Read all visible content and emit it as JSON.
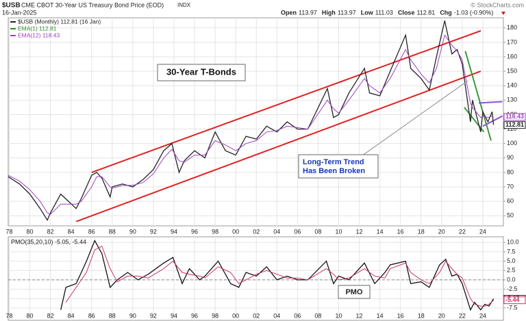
{
  "chart_data": [
    {
      "type": "line",
      "symbol": "$USB",
      "title": "CME CBOT 30-Year US Treasury Bond Price (EOD)",
      "exchange": "INDX",
      "date": "16-Jan-2025",
      "credit": "© StockCharts.com",
      "ohlc": [
        [
          "Open",
          "113.97"
        ],
        [
          "High",
          "113.97"
        ],
        [
          "Low",
          "111.03"
        ],
        [
          "Close",
          "112.81"
        ],
        [
          "Chg",
          "-1.03 (-0.90%)"
        ]
      ],
      "annotations": [
        "30-Year T-Bonds",
        "Long-Term Trend",
        "Has Been Broken"
      ],
      "extra_legend": [
        {
          "name": "EMA(1) 112.81",
          "color": "#2e8b2e"
        }
      ],
      "x": [
        1977.9,
        1979,
        1980,
        1981,
        1981.7,
        1982,
        1983,
        1984.5,
        1985,
        1986,
        1986.5,
        1987,
        1987.8,
        1988,
        1989,
        1990,
        1991,
        1992,
        1993,
        1993.8,
        1994.5,
        1995,
        1996,
        1997,
        1998,
        1999,
        2000,
        2001,
        2002,
        2003,
        2004,
        2005,
        2006,
        2007,
        2008.9,
        2009.5,
        2010,
        2011,
        2012.5,
        2013,
        2014,
        2015,
        2016.5,
        2017,
        2018,
        2018.8,
        2019.5,
        2020.3,
        2021,
        2021.5,
        2022,
        2022.8,
        2023,
        2023.8,
        2024,
        2024.5,
        2024.9,
        2025.04
      ],
      "series": [
        {
          "name": "$USB (Monthly) 112.81 (16 Jan)",
          "color": "#222222",
          "last_label": "112.81",
          "values": [
            77,
            72,
            65,
            55,
            47,
            52,
            65,
            55,
            62,
            78,
            80,
            76,
            63,
            70,
            72,
            70,
            75,
            82,
            95,
            100,
            80,
            88,
            95,
            90,
            108,
            95,
            92,
            105,
            103,
            112,
            108,
            115,
            110,
            110,
            138,
            118,
            120,
            135,
            152,
            135,
            133,
            150,
            175,
            152,
            145,
            137,
            160,
            185,
            162,
            165,
            155,
            115,
            130,
            108,
            122,
            115,
            122,
            112.81
          ]
        },
        {
          "name": "EMA(12) 118.43",
          "color": "#a040c0",
          "last_label": "118.43",
          "values": [
            78,
            74,
            68,
            60,
            52,
            51,
            58,
            58,
            60,
            70,
            77,
            77,
            70,
            69,
            71,
            71,
            73,
            79,
            90,
            96,
            88,
            87,
            92,
            92,
            102,
            99,
            95,
            100,
            102,
            108,
            109,
            112,
            111,
            110,
            130,
            124,
            121,
            130,
            145,
            140,
            135,
            145,
            165,
            158,
            148,
            142,
            152,
            175,
            168,
            164,
            158,
            128,
            125,
            118,
            119,
            118,
            119,
            118.43
          ]
        }
      ],
      "trendlines": [
        {
          "color": "#e02020",
          "points": [
            [
              1986,
              80
            ],
            [
              2023.8,
              178
            ]
          ]
        },
        {
          "color": "#e02020",
          "points": [
            [
              1984.5,
              46
            ],
            [
              2023.8,
              150
            ]
          ]
        },
        {
          "color": "#3a9a3a",
          "points": [
            [
              2022.3,
              164
            ],
            [
              2024.8,
              102
            ]
          ]
        },
        {
          "color": "#3a9a3a",
          "points": [
            [
              2022.2,
              125
            ],
            [
              2024.1,
              108
            ]
          ]
        },
        {
          "color": "#9050d0",
          "points": [
            [
              2024,
              112
            ],
            [
              2025.9,
              119
            ]
          ]
        },
        {
          "color": "#9050d0",
          "points": [
            [
              2023.6,
              128
            ],
            [
              2025.9,
              129
            ]
          ]
        }
      ],
      "xlim": [
        1977.9,
        2026
      ],
      "ylim": [
        43,
        187
      ],
      "xticks": [
        {
          "value": 1978,
          "label": "78"
        },
        {
          "value": 1980,
          "label": "80"
        },
        {
          "value": 1982,
          "label": "82"
        },
        {
          "value": 1984,
          "label": "84"
        },
        {
          "value": 1986,
          "label": "86"
        },
        {
          "value": 1988,
          "label": "88"
        },
        {
          "value": 1990,
          "label": "90"
        },
        {
          "value": 1992,
          "label": "92"
        },
        {
          "value": 1994,
          "label": "94"
        },
        {
          "value": 1996,
          "label": "96"
        },
        {
          "value": 1998,
          "label": "98"
        },
        {
          "value": 2000,
          "label": "00"
        },
        {
          "value": 2002,
          "label": "02"
        },
        {
          "value": 2004,
          "label": "04"
        },
        {
          "value": 2006,
          "label": "06"
        },
        {
          "value": 2008,
          "label": "08"
        },
        {
          "value": 2010,
          "label": "10"
        },
        {
          "value": 2012,
          "label": "12"
        },
        {
          "value": 2014,
          "label": "14"
        },
        {
          "value": 2016,
          "label": "16"
        },
        {
          "value": 2018,
          "label": "18"
        },
        {
          "value": 2020,
          "label": "20"
        },
        {
          "value": 2022,
          "label": "22"
        },
        {
          "value": 2024,
          "label": "24"
        }
      ],
      "yticks": [
        50,
        60,
        70,
        80,
        90,
        100,
        110,
        120,
        130,
        140,
        150,
        160,
        170,
        180
      ],
      "grid": true
    },
    {
      "type": "line",
      "title": "PMO(35,20,10) -5.05, -5.44",
      "annotation": "PMO",
      "x": [
        1983,
        1983.5,
        1984.5,
        1985.5,
        1986.3,
        1987,
        1987.8,
        1988.5,
        1989.5,
        1990.5,
        1991.5,
        1993,
        1993.9,
        1994.8,
        1995.5,
        1996.5,
        1997,
        1998.3,
        1999.5,
        2000.3,
        2001,
        2002,
        2003,
        2004,
        2005,
        2006,
        2007,
        2008.8,
        2009.5,
        2010,
        2011,
        2012.5,
        2013.5,
        2014.5,
        2015,
        2016.5,
        2017,
        2018,
        2018.8,
        2019.8,
        2020.4,
        2021,
        2021.5,
        2022,
        2022.8,
        2023.2,
        2023.8,
        2024.2,
        2024.6,
        2025.04
      ],
      "series": [
        {
          "color": "#111111",
          "last_label": "-5.05",
          "values": [
            -8,
            -2,
            -1,
            5,
            10.5,
            7,
            -2,
            0,
            2,
            0,
            1.5,
            4.5,
            6,
            -1,
            3,
            0,
            1,
            5,
            -1,
            -2,
            2,
            1,
            3.5,
            0,
            1,
            0,
            0,
            5,
            -1,
            1,
            0,
            4.5,
            -1,
            2,
            4,
            5,
            -1,
            -0.5,
            -2,
            4,
            5.5,
            1,
            1.5,
            -1,
            -8,
            -6,
            -8,
            -6.5,
            -7,
            -5.05
          ]
        },
        {
          "color": "#d03060",
          "last_label": "-5.44",
          "values": [
            null,
            -6,
            -2,
            2,
            8,
            9,
            3,
            -0.5,
            1,
            1,
            0.5,
            3,
            5,
            2,
            1.5,
            1,
            0.5,
            3.5,
            2,
            -1,
            0,
            1.5,
            2.5,
            1.5,
            0.5,
            0.5,
            0,
            3,
            1.5,
            0,
            0.5,
            3,
            1,
            0.5,
            3,
            4.5,
            2,
            0,
            -1,
            2,
            5,
            3,
            1.5,
            0.5,
            -5,
            -6.5,
            -7,
            -7,
            -6.5,
            -5.44
          ]
        }
      ],
      "ylim": [
        -10.8,
        11.5
      ],
      "yticks": [
        {
          "value": 10,
          "label": "10.0"
        },
        {
          "value": 7.5,
          "label": "7.5"
        },
        {
          "value": 5,
          "label": "5.0"
        },
        {
          "value": 2.5,
          "label": "2.5"
        },
        {
          "value": 0,
          "label": "0.0"
        },
        {
          "value": -2.5,
          "label": "-2.5"
        },
        {
          "value": -5,
          "label": "-5.0"
        },
        {
          "value": -7.5,
          "label": "-7.5"
        }
      ],
      "grid": true,
      "zero_line": true
    }
  ]
}
